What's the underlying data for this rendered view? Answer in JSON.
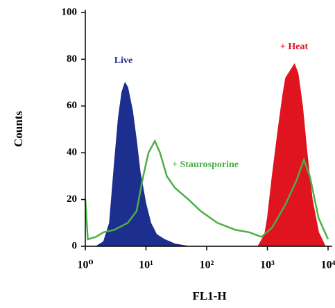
{
  "chart_data": {
    "type": "histogram-overlay",
    "ylabel": "Counts",
    "xlabel": "FL1-H",
    "xscale": "log",
    "xlim": [
      1,
      10000
    ],
    "ylim": [
      0,
      100
    ],
    "xticks": [
      {
        "value": 1,
        "label": "10⁰"
      },
      {
        "value": 10,
        "label": "10¹"
      },
      {
        "value": 100,
        "label": "10²"
      },
      {
        "value": 1000,
        "label": "10³"
      },
      {
        "value": 10000,
        "label": "10⁴"
      }
    ],
    "yticks": [
      0,
      20,
      40,
      60,
      80,
      100
    ],
    "series": [
      {
        "name": "Live",
        "color": "#1c2f8f",
        "style": "area",
        "x": [
          1.5,
          2,
          2.5,
          3,
          3.5,
          4,
          4.5,
          5,
          6,
          7,
          8,
          10,
          12,
          15,
          20,
          30,
          50
        ],
        "values": [
          0,
          2,
          10,
          35,
          55,
          66,
          70,
          68,
          58,
          45,
          32,
          18,
          10,
          5,
          3,
          1,
          0
        ]
      },
      {
        "name": "+ Heat",
        "color": "#e0141e",
        "style": "area",
        "x": [
          700,
          900,
          1000,
          1200,
          1500,
          1800,
          2000,
          2500,
          2800,
          3200,
          3800,
          4500,
          5500,
          7000,
          9000
        ],
        "values": [
          0,
          5,
          12,
          30,
          50,
          65,
          72,
          76,
          78,
          74,
          60,
          40,
          20,
          6,
          0
        ]
      },
      {
        "name": "+ Staurosporine",
        "color": "#4caf45",
        "style": "line",
        "x": [
          1,
          1.1,
          1.5,
          2,
          3,
          5,
          7,
          9,
          11,
          14,
          17,
          22,
          30,
          50,
          80,
          150,
          300,
          500,
          800,
          1200,
          2000,
          3000,
          4000,
          5000,
          7000,
          10000
        ],
        "values": [
          20,
          3,
          4,
          6,
          7,
          10,
          15,
          30,
          40,
          45,
          40,
          30,
          25,
          20,
          15,
          10,
          7,
          6,
          4,
          8,
          18,
          28,
          37,
          30,
          12,
          3
        ]
      }
    ]
  }
}
